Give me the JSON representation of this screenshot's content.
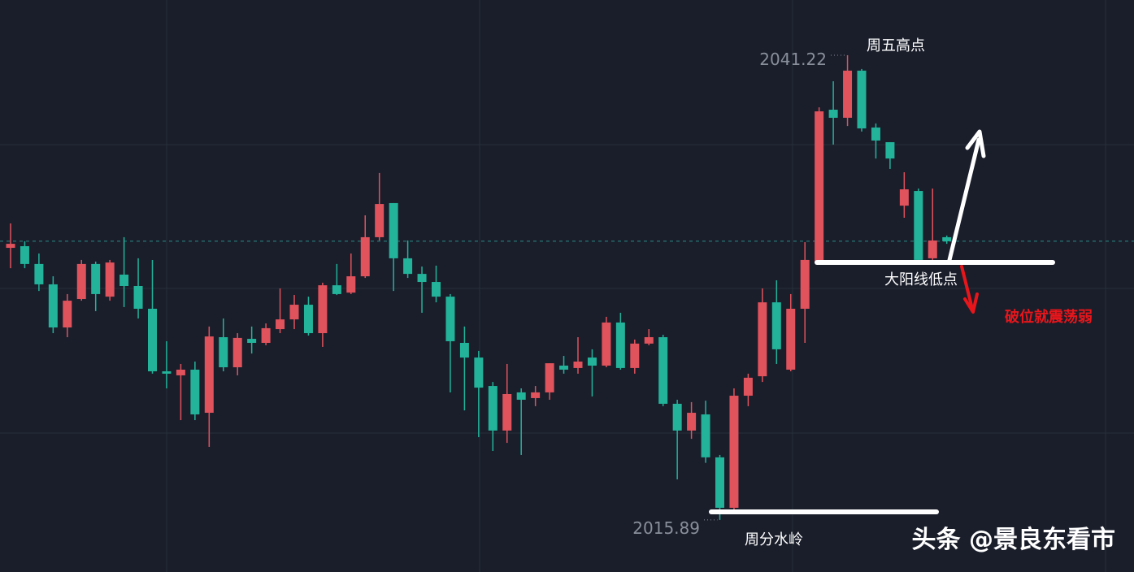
{
  "chart_data": {
    "type": "candlestick",
    "up_color": "#e0525c",
    "down_color": "#22b39a",
    "background": "#1a1e2b",
    "ylim": [
      2013.05,
      2044.23
    ],
    "candles": {
      "open": [
        2030.72,
        2030.81,
        2029.84,
        2028.73,
        2026.38,
        2027.93,
        2029.84,
        2028.06,
        2029.26,
        2028.64,
        2027.4,
        2023.99,
        2023.77,
        2024.08,
        2021.73,
        2025.85,
        2024.21,
        2025.76,
        2025.54,
        2026.29,
        2026.82,
        2027.62,
        2026.07,
        2028.68,
        2028.28,
        2029.17,
        2031.3,
        2033.16,
        2030.15,
        2029.3,
        2028.86,
        2028.06,
        2025.54,
        2024.74,
        2023.19,
        2020.76,
        2022.84,
        2022.53,
        2022.84,
        2024.3,
        2024.17,
        2024.74,
        2024.3,
        2026.65,
        2024.17,
        2025.5,
        2025.85,
        2022.22,
        2020.76,
        2021.64,
        2019.3,
        2016.55,
        2022.66,
        2023.72,
        2027.75,
        2024.08,
        2027.4,
        2029.97,
        2038.25,
        2037.81,
        2040.38,
        2037.28,
        2036.48,
        2033.02,
        2033.82,
        2030.15,
        2031.3
      ],
      "high": [
        2032.05,
        2031.08,
        2030.41,
        2029.17,
        2028.2,
        2030.06,
        2029.97,
        2030.06,
        2031.3,
        2030.15,
        2030.06,
        2025.63,
        2024.39,
        2024.52,
        2026.43,
        2026.87,
        2026.07,
        2026.43,
        2026.6,
        2028.51,
        2028.15,
        2028.06,
        2028.82,
        2029.84,
        2030.41,
        2032.49,
        2034.8,
        2033.16,
        2031.12,
        2029.7,
        2029.75,
        2028.2,
        2026.43,
        2025.1,
        2023.41,
        2024.39,
        2023.06,
        2023.19,
        2024.43,
        2024.83,
        2025.85,
        2025.19,
        2026.96,
        2027.18,
        2025.72,
        2026.29,
        2025.98,
        2022.44,
        2022.31,
        2022.39,
        2019.43,
        2023.06,
        2023.86,
        2028.51,
        2028.95,
        2028.2,
        2031.03,
        2038.38,
        2039.8,
        2041.22,
        2040.47,
        2037.5,
        2036.48,
        2034.84,
        2033.95,
        2033.95,
        2031.39
      ],
      "low": [
        2029.61,
        2029.61,
        2028.37,
        2026.07,
        2025.85,
        2027.84,
        2027.27,
        2027.84,
        2027.49,
        2026.87,
        2023.86,
        2023.06,
        2021.33,
        2021.33,
        2019.87,
        2023.99,
        2023.77,
        2024.96,
        2025.41,
        2026.07,
        2026.29,
        2025.94,
        2025.32,
        2028.15,
        2028.2,
        2029.08,
        2031.12,
        2028.37,
        2029.08,
        2027.18,
        2027.75,
        2022.84,
        2021.86,
        2020.4,
        2019.65,
        2020.09,
        2019.43,
        2022.09,
        2022.44,
        2023.86,
        2023.86,
        2022.62,
        2024.21,
        2024.08,
        2023.86,
        2025.41,
        2022.09,
        2018.1,
        2020.31,
        2019.0,
        2015.89,
        2016.46,
        2022.09,
        2023.41,
        2024.39,
        2023.99,
        2025.54,
        2029.84,
        2036.35,
        2037.36,
        2037.06,
        2035.59,
        2035.02,
        2032.36,
        2030.06,
        2030.06,
        2030.94
      ],
      "close": [
        2030.94,
        2029.84,
        2028.73,
        2026.38,
        2027.84,
        2029.84,
        2028.2,
        2029.92,
        2028.64,
        2027.4,
        2023.99,
        2023.86,
        2024.08,
        2021.64,
        2025.89,
        2024.21,
        2025.81,
        2025.54,
        2026.34,
        2026.82,
        2027.62,
        2026.07,
        2028.68,
        2028.2,
        2029.17,
        2031.3,
        2033.11,
        2030.15,
        2029.3,
        2028.86,
        2028.06,
        2025.63,
        2024.74,
        2023.1,
        2020.76,
        2022.75,
        2022.44,
        2022.84,
        2024.43,
        2024.08,
        2024.52,
        2024.3,
        2026.65,
        2024.17,
        2025.5,
        2025.85,
        2022.22,
        2020.76,
        2021.73,
        2019.3,
        2016.55,
        2022.66,
        2023.64,
        2027.75,
        2025.19,
        2027.4,
        2030.06,
        2038.16,
        2037.81,
        2040.38,
        2037.23,
        2036.57,
        2035.59,
        2033.91,
        2030.06,
        2031.12,
        2031.08
      ]
    },
    "annotations": {
      "high_note": "周五高点",
      "support_note": "大阳线低点",
      "break_note": "破位就震荡弱",
      "watershed_note": "周分水岭"
    },
    "watermark": "头条 @景良东看市"
  }
}
